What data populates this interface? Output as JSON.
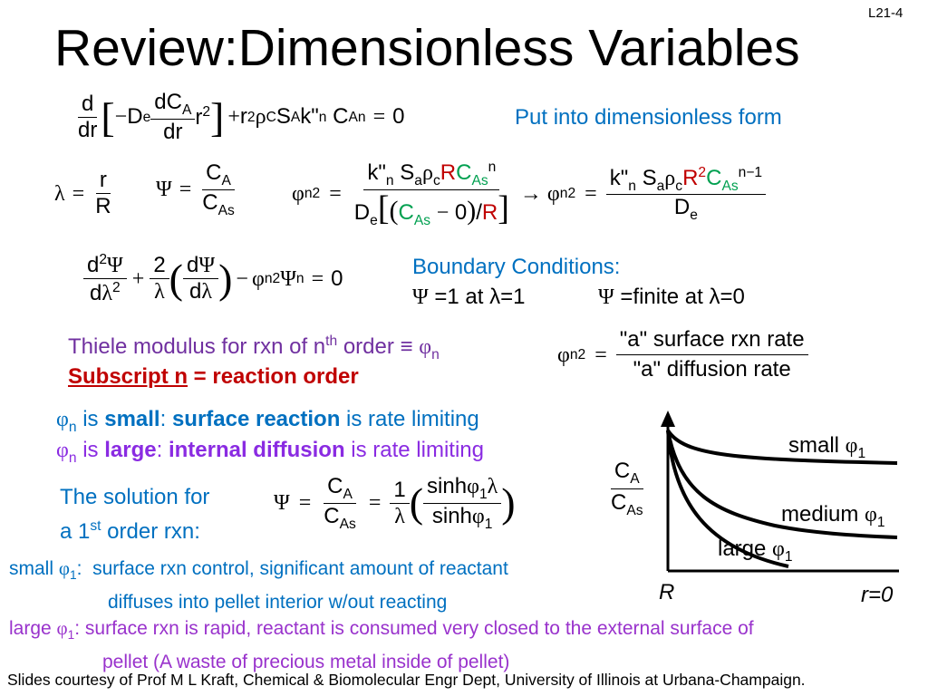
{
  "slide_number": "L21-4",
  "title": "Review:Dimensionless Variables",
  "eq1_note": "Put into dimensionless form",
  "bc_title": "Boundary Conditions:",
  "bc1": "=1 at λ=1",
  "bc2": "=finite at λ=0",
  "thiele_line": "Thiele modulus for rxn of n",
  "thiele_sup": "th",
  "thiele_end": " order ≡ ",
  "subscript_u": "Subscript n",
  "subscript_rest": " = reaction order",
  "phi_ratio_num": "\"a\" surface rxn rate",
  "phi_ratio_den": "\"a\" diffusion rate",
  "small_line": {
    "is": " is ",
    "word": "small",
    "colon": ": ",
    "bold": "surface reaction",
    "rest": " is rate limiting"
  },
  "large_line": {
    "is": " is ",
    "word": "large",
    "colon": ": ",
    "bold": "internal diffusion",
    "rest": " is rate limiting"
  },
  "solution_label": {
    "line1": "The solution for",
    "line2a": "a 1",
    "line2sup": "st",
    "line2b": " order rxn:"
  },
  "small_note": {
    "label": "small ",
    "text1": "surface rxn control, significant amount of reactant",
    "text2": "diffuses into pellet interior w/out reacting"
  },
  "large_note": {
    "label": "large ",
    "text1": "surface rxn is rapid, reactant is consumed very closed to the external surface of",
    "text2": "pellet (A waste of precious metal inside of pellet)"
  },
  "credits": "Slides courtesy of Prof M L Kraft, Chemical & Biomolecular Engr Dept, University of Illinois at Urbana-Champaign.",
  "graph": {
    "y_label_num": "C",
    "y_label_num_sub": "A",
    "y_label_den": "C",
    "y_label_den_sub": "As",
    "x_left": "R",
    "x_right": "r=0",
    "curve_small": "small ",
    "curve_medium": "medium ",
    "curve_large": "large "
  }
}
